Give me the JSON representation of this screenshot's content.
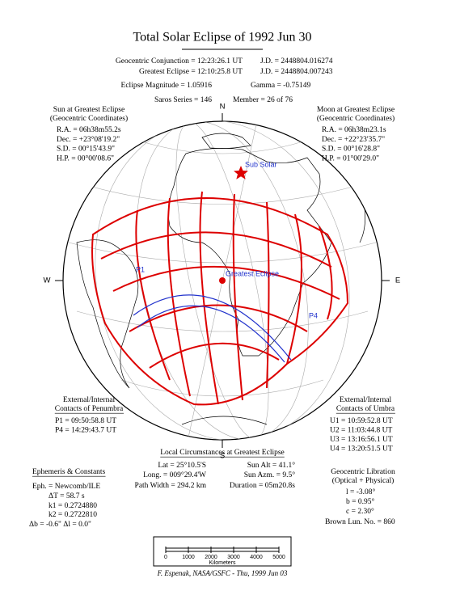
{
  "title": "Total Solar Eclipse of 1992 Jun 30",
  "header": {
    "rows": [
      [
        "Geocentric Conjunction = 12:23:26.1 UT",
        "J.D. = 2448804.016274"
      ],
      [
        "Greatest Eclipse = 12:10:25.8 UT",
        "J.D. = 2448804.007243"
      ],
      [
        "Eclipse Magnitude = 1.05916",
        "Gamma = -0.75149"
      ],
      [
        "Saros Series = 146",
        "Member = 26 of 76"
      ]
    ]
  },
  "sun": {
    "title": [
      "Sun at Greatest Eclipse",
      "(Geocentric Coordinates)"
    ],
    "lines": [
      "R.A. = 06h38m55.2s",
      "Dec. = +23°08'19.2\"",
      "S.D. = 00°15'43.9\"",
      "H.P. = 00°00'08.6\""
    ]
  },
  "moon": {
    "title": [
      "Moon at Greatest Eclipse",
      "(Geocentric Coordinates)"
    ],
    "lines": [
      "R.A. = 06h38m23.1s",
      "Dec. = +22°23'35.7\"",
      "S.D. = 00°16'28.8\"",
      "H.P. = 01°00'29.0\""
    ]
  },
  "map": {
    "compass": {
      "n": "N",
      "s": "S",
      "e": "E",
      "w": "W"
    },
    "labels": {
      "sub_solar": "Sub Solar",
      "greatest_eclipse": "Greatest Eclipse",
      "p1": "P1",
      "p4": "P4"
    }
  },
  "penumbra": {
    "title": [
      "External/Internal",
      "Contacts of Penumbra"
    ],
    "lines": [
      "P1 = 09:50:58.8 UT",
      "P4 = 14:29:43.7 UT"
    ]
  },
  "umbra": {
    "title": [
      "External/Internal",
      "Contacts of Umbra"
    ],
    "lines": [
      "U1 = 10:59:52.8 UT",
      "U2 = 11:03:44.8 UT",
      "U3 = 13:16:56.1 UT",
      "U4 = 13:20:51.5 UT"
    ]
  },
  "local": {
    "title": "Local Circumstances at Greatest Eclipse",
    "rows": [
      [
        "Lat = 25°10.5'S",
        "Sun Alt = 41.1°"
      ],
      [
        "Long. = 009°29.4'W",
        "Sun Azm. = 9.5°"
      ],
      [
        "Path Width = 294.2 km",
        "Duration = 05m20.8s"
      ]
    ]
  },
  "ephemeris": {
    "title": "Ephemeris & Constants",
    "lines": [
      "Eph. = Newcomb/ILE",
      "ΔT = 58.7 s",
      "k1 = 0.2724880",
      "k2 = 0.2722810",
      "Δb = -0.6\"   Δl = 0.0\""
    ]
  },
  "libration": {
    "title": [
      "Geocentric Libration",
      "(Optical + Physical)"
    ],
    "lines": [
      "l = -3.08°",
      "b = 0.95°",
      "c = 2.30°"
    ],
    "brown": "Brown Lun. No. = 860"
  },
  "scale": {
    "ticks": [
      "0",
      "1000",
      "2000",
      "3000",
      "4000",
      "5000"
    ],
    "unit": "Kilometers"
  },
  "footer": "F. Espenak, NASA/GSFC - Thu, 1999 Jun 03"
}
